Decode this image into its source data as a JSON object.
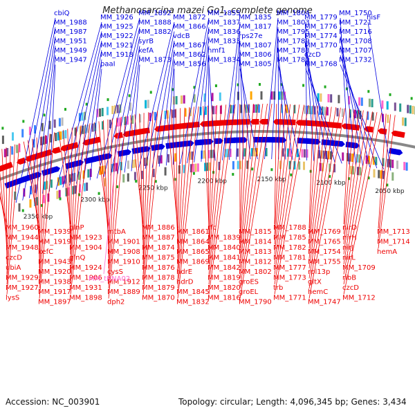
{
  "title": "Methanosarcina mazei Go1, complete genome",
  "footer": {
    "accession": "Accession: NC_003901",
    "topology": "Topology: circular; Length: 4,096,345 bp; Genes: 3,434"
  },
  "colors": {
    "forward": "#0000e0",
    "reverse": "#ee0000",
    "rna": "#ff66cc",
    "backbone": "#888888"
  },
  "kbp_markers": [
    "2350 kbp",
    "2300 kbp",
    "2250 kbp",
    "2200 kbp",
    "2150 kbp",
    "2100 kbp",
    "2050 kbp"
  ],
  "forward_genes": [
    "cbiQ",
    "MM_1988",
    "MM_1987",
    "MM_1951",
    "MM_1949",
    "MM_1947",
    "MM_1926",
    "MM_1925",
    "MM_1922",
    "MM_1921",
    "MM_1918",
    "paaI",
    "MM_1892",
    "MM_1888",
    "MM_1882",
    "syrB",
    "kefA",
    "MM_1873",
    "MM_1872",
    "MM_1866",
    "vdcB",
    "MM_1867",
    "MM_1862",
    "MM_1856",
    "MM_1855",
    "MM_1837",
    "MM_1836",
    "MM_1833",
    "hmf1",
    "MM_1834",
    "MM_1835",
    "MM_1817",
    "rps27e",
    "MM_1807",
    "MM_1806",
    "MM_1805",
    "MM_1804",
    "MM_1803",
    "MM_1795",
    "MM_1789",
    "MM_1783",
    "MM_1780",
    "MM_1779",
    "MM_1776",
    "MM_1774",
    "MM_1770",
    "czcD",
    "MM_1768",
    "MM_1750",
    "MM_1721",
    "MM_1716",
    "MM_1708",
    "MM_1707",
    "MM_1732",
    "hisF"
  ],
  "reverse_genes": [
    "MM_1960",
    "MM_1944",
    "MM_1948",
    "czcD",
    "ubiA",
    "MM_1929",
    "MM_1927",
    "lysS",
    "MM_1939",
    "MM_1919",
    "kefC",
    "MM_1943",
    "MM_1920",
    "MM_1938",
    "MM_1917",
    "MM_1897",
    "glnP",
    "MM_1923",
    "MM_1904",
    "glnQ",
    "MM_1924",
    "MM_1906",
    "MM_1931",
    "MM_1898",
    "mtbA",
    "MM_1901",
    "MM_1908",
    "MM_1910",
    "cysS",
    "MM_1912",
    "MM_1889",
    "dph2",
    "MM_1886",
    "MM_1887",
    "MM_1874",
    "MM_1875",
    "MM_1876",
    "MM_1878",
    "MM_1879",
    "MM_1870",
    "MM_1861",
    "MM_1864",
    "MM_1865",
    "MM_1869",
    "hdrE",
    "hdrD",
    "MM_1845",
    "MM_1832",
    "rfc",
    "MM_1839",
    "MM_1840",
    "MM_1841",
    "MM_1842",
    "MM_1819",
    "MM_1820",
    "MM_1816",
    "MM_1815",
    "MM_1814",
    "MM_1813",
    "MM_1812",
    "MM_1802",
    "groES",
    "groEL",
    "MM_1790",
    "MM_1788",
    "MM_1785",
    "MM_1782",
    "MM_1781",
    "MM_1777",
    "MM_1773",
    "trb",
    "MM_1771",
    "MM_1769",
    "MM_1765",
    "MM_1754",
    "MM_1755",
    "rpl13p",
    "gltX",
    "hemC",
    "MM_1747",
    "nirD",
    "nirH",
    "nirJ",
    "nirL",
    "MM_1709",
    "ribB",
    "czcD",
    "MM_1712",
    "MM_1713",
    "MM_1714",
    "hemA"
  ],
  "rna_genes": [
    "MM_tRNA02"
  ]
}
